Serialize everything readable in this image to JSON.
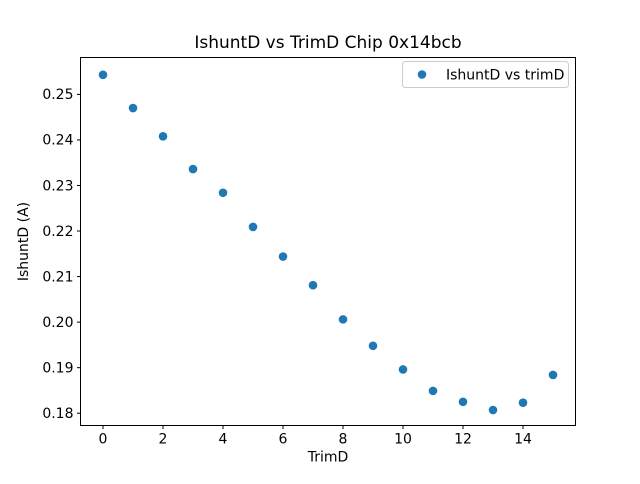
{
  "figure": {
    "background": "#ffffff"
  },
  "chart_data": {
    "type": "scatter",
    "title": "IshuntD vs TrimD Chip 0x14bcb",
    "xlabel": "TrimD",
    "ylabel": "IshuntD (A)",
    "legend": {
      "label": "IshuntD vs trimD",
      "position": "upper right",
      "marker": "circle-icon",
      "frame_color": "#cccccc"
    },
    "marker_color": "#1f77b4",
    "axis_color": "#000000",
    "grid": false,
    "x": [
      0,
      1,
      2,
      3,
      4,
      5,
      6,
      7,
      8,
      9,
      10,
      11,
      12,
      13,
      14,
      15
    ],
    "y": [
      0.2543,
      0.247,
      0.2408,
      0.2336,
      0.2284,
      0.2209,
      0.2144,
      0.2081,
      0.2006,
      0.1948,
      0.1896,
      0.1849,
      0.1825,
      0.1807,
      0.1823,
      0.1884
    ],
    "xlim": [
      -0.75,
      15.75
    ],
    "ylim": [
      0.1773,
      0.2581
    ],
    "xticks": {
      "values": [
        0,
        2,
        4,
        6,
        8,
        10,
        12,
        14
      ],
      "labels": [
        "0",
        "2",
        "4",
        "6",
        "8",
        "10",
        "12",
        "14"
      ]
    },
    "yticks": {
      "values": [
        0.18,
        0.19,
        0.2,
        0.21,
        0.22,
        0.23,
        0.24,
        0.25
      ],
      "labels": [
        "0.18",
        "0.19",
        "0.20",
        "0.21",
        "0.22",
        "0.23",
        "0.24",
        "0.25"
      ]
    }
  }
}
